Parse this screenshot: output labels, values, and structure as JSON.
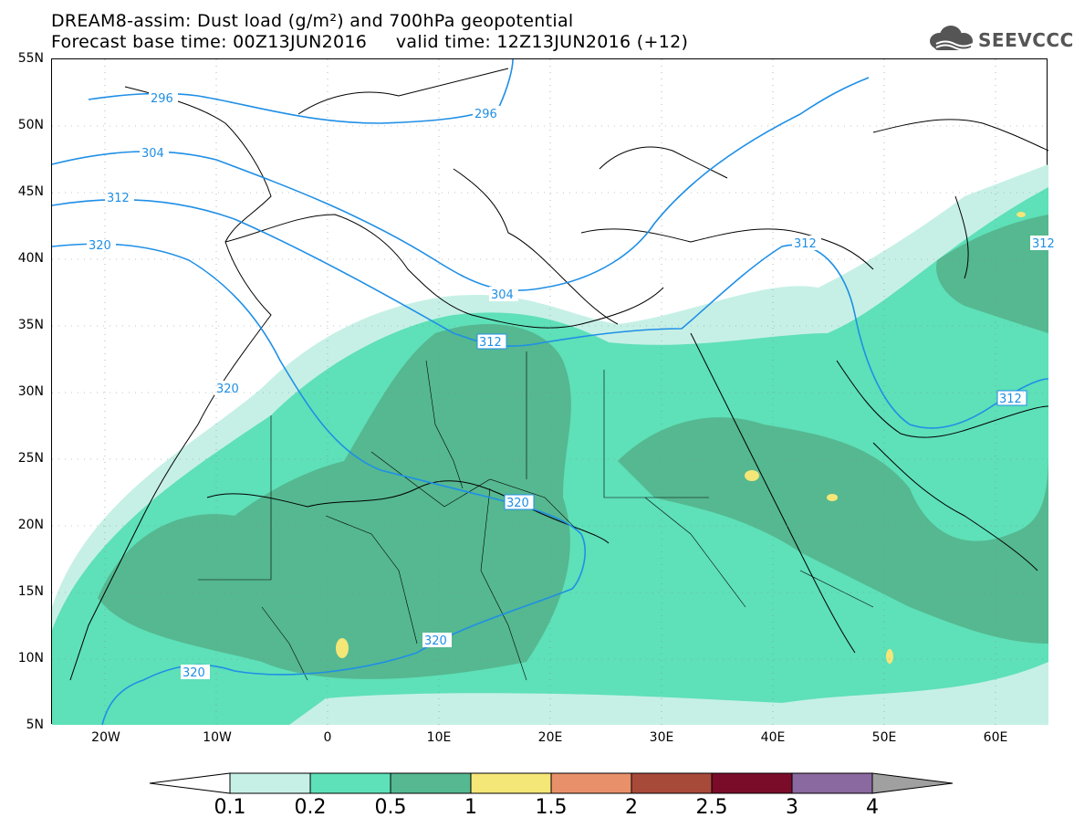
{
  "header": {
    "title": "DREAM8-assim: Dust load (g/m²) and 700hPa geopotential",
    "subtitle": "Forecast base time: 00Z13JUN2016     valid time: 12Z13JUN2016 (+12)",
    "logo_text": "SEEVCCC"
  },
  "map": {
    "lat_ticks": [
      "55N",
      "50N",
      "45N",
      "40N",
      "35N",
      "30N",
      "25N",
      "20N",
      "15N",
      "10N",
      "5N"
    ],
    "lon_ticks": [
      "20W",
      "10W",
      "0",
      "10E",
      "20E",
      "30E",
      "40E",
      "50E",
      "60E"
    ],
    "contour_labels": [
      {
        "id": "c296a",
        "text": "296"
      },
      {
        "id": "c296b",
        "text": "296"
      },
      {
        "id": "c304a",
        "text": "304"
      },
      {
        "id": "c304b",
        "text": "304"
      },
      {
        "id": "c312a",
        "text": "312"
      },
      {
        "id": "c312b",
        "text": "312"
      },
      {
        "id": "c312c",
        "text": "312"
      },
      {
        "id": "c312d",
        "text": "312"
      },
      {
        "id": "c312e",
        "text": "312"
      },
      {
        "id": "c320a",
        "text": "320"
      },
      {
        "id": "c320b",
        "text": "320"
      },
      {
        "id": "c320c",
        "text": "320"
      },
      {
        "id": "c320d",
        "text": "320"
      },
      {
        "id": "c320e",
        "text": "320"
      }
    ],
    "colors": {
      "contour": "#1f8fe6",
      "coast": "#000000"
    }
  },
  "colorbar": {
    "labels": [
      "0.1",
      "0.2",
      "0.5",
      "1",
      "1.5",
      "2",
      "2.5",
      "3",
      "4"
    ],
    "colors": [
      "#c6f0e6",
      "#5ee0b8",
      "#55b890",
      "#f5e678",
      "#e8906a",
      "#a84a3a",
      "#7a0c2a",
      "#8a68a0"
    ],
    "under_color": "#ffffff",
    "over_color": "#a0a0a0"
  }
}
